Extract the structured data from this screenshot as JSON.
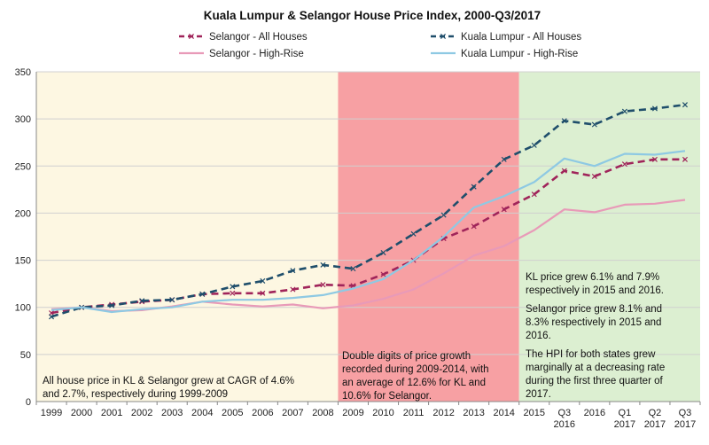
{
  "chart_data": {
    "type": "line",
    "title": "Kuala Lumpur & Selangor House Price Index, 2000-Q3/2017",
    "xlabel": "",
    "ylabel": "",
    "ylim": [
      0,
      350
    ],
    "yticks": [
      0,
      50,
      100,
      150,
      200,
      250,
      300,
      350
    ],
    "categories": [
      [
        "1999"
      ],
      [
        "2000"
      ],
      [
        "2001"
      ],
      [
        "2002"
      ],
      [
        "2003"
      ],
      [
        "2004"
      ],
      [
        "2005"
      ],
      [
        "2006"
      ],
      [
        "2007"
      ],
      [
        "2008"
      ],
      [
        "2009"
      ],
      [
        "2010"
      ],
      [
        "2011"
      ],
      [
        "2012"
      ],
      [
        "2013"
      ],
      [
        "2014"
      ],
      [
        "2015"
      ],
      [
        "Q3",
        "2016"
      ],
      [
        "2016"
      ],
      [
        "Q1",
        "2017"
      ],
      [
        "Q2",
        "2017"
      ],
      [
        "Q3",
        "2017"
      ]
    ],
    "grid": "horizontal",
    "legend_position": "top",
    "series": [
      {
        "name": "Selangor - All Houses",
        "style": "dashed-marker",
        "color": "#a0245a",
        "values": [
          94,
          100,
          103,
          106,
          108,
          114,
          115,
          115,
          119,
          124,
          123,
          135,
          150,
          173,
          186,
          204,
          220,
          245,
          239,
          252,
          257,
          257
        ]
      },
      {
        "name": "Selangor - High-Rise",
        "style": "solid",
        "color": "#e89ab8",
        "values": [
          98,
          100,
          96,
          97,
          101,
          106,
          103,
          101,
          103,
          99,
          102,
          109,
          119,
          136,
          155,
          165,
          182,
          204,
          201,
          209,
          210,
          214
        ]
      },
      {
        "name": "Kuala Lumpur - All Houses",
        "style": "dashed-marker",
        "color": "#1f4e6b",
        "values": [
          90,
          100,
          102,
          107,
          108,
          114,
          122,
          128,
          139,
          145,
          141,
          158,
          178,
          198,
          228,
          257,
          272,
          298,
          294,
          308,
          311,
          315
        ]
      },
      {
        "name": "Kuala Lumpur - High-Rise",
        "style": "solid",
        "color": "#8ec9e3",
        "values": [
          97,
          100,
          95,
          98,
          100,
          106,
          108,
          108,
          110,
          113,
          120,
          130,
          150,
          175,
          206,
          218,
          233,
          258,
          250,
          263,
          262,
          266
        ]
      }
    ],
    "shaded_regions": [
      {
        "from": "1999",
        "to": "2008",
        "color": "#fdf7e2"
      },
      {
        "from": "2009",
        "to": "2014",
        "color": "#f7a0a3"
      },
      {
        "from": "2015",
        "to": "Q3 2017",
        "color": "#dcefd1"
      }
    ],
    "annotations": {
      "period1": [
        "All house price in KL & Selangor  grew at CAGR of 4.6%",
        "and 2.7%, respectively during 1999-2009"
      ],
      "period2": [
        "Double digits of price growth",
        "recorded during 2009-2014, with",
        "an average of 12.6% for KL and",
        "10.6% for Selangor."
      ],
      "period3a": [
        "KL price grew 6.1% and  7.9%",
        "respectively in 2015 and 2016."
      ],
      "period3b": [
        "Selangor price grew 8.1% and",
        "8.3% respectively in 2015 and",
        "2016."
      ],
      "period3c": [
        "The HPI for both states grew",
        "marginally at a decreasing rate",
        "during the first three quarter of",
        "2017."
      ]
    }
  }
}
